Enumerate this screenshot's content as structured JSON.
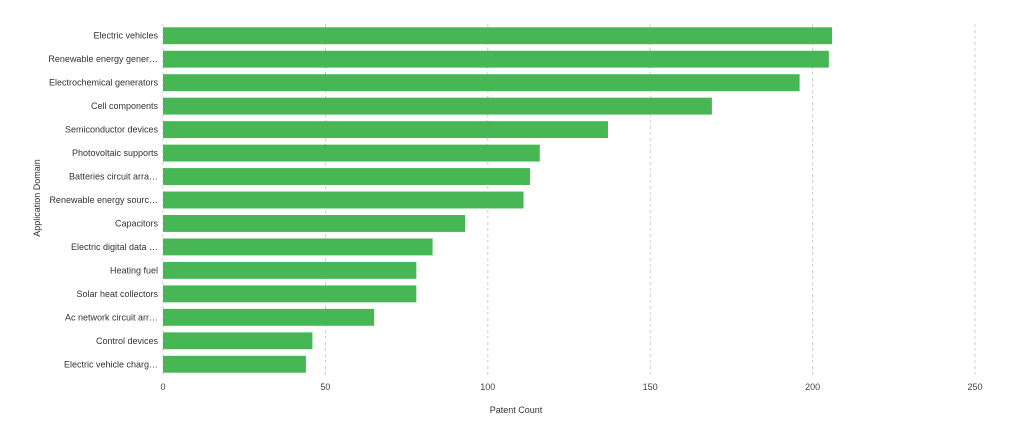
{
  "chart_data": {
    "type": "bar",
    "orientation": "horizontal",
    "xlabel": "Patent Count",
    "ylabel": "Application Domain",
    "xlim": [
      0,
      250
    ],
    "xticks": [
      0,
      50,
      100,
      150,
      200,
      250
    ],
    "grid": "vertical-dashed",
    "bar_color": "#47b756",
    "categories": [
      "Electric vehicles",
      "Renewable energy gener…",
      "Electrochemical generators",
      "Cell components",
      "Semiconductor devices",
      "Photovoltaic supports",
      "Batteries circuit arra…",
      "Renewable energy sourc…",
      "Capacitors",
      "Electric digital data …",
      "Heating fuel",
      "Solar heat collectors",
      "Ac network circuit arr…",
      "Control devices",
      "Electric vehicle charg…"
    ],
    "values": [
      206,
      205,
      196,
      169,
      137,
      116,
      113,
      111,
      93,
      83,
      78,
      78,
      65,
      46,
      44
    ]
  }
}
